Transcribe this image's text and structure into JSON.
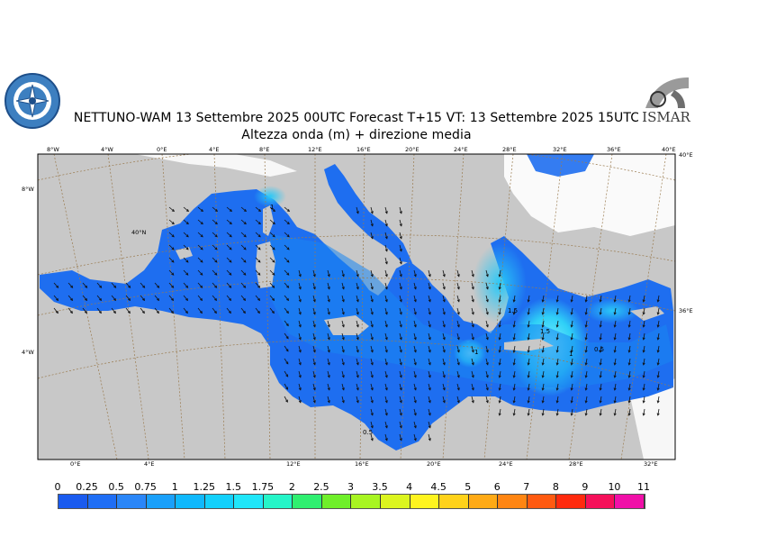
{
  "header": {
    "title_line1": "NETTUNO-WAM  13 Settembre 2025 00UTC Forecast T+15 VT: 13 Settembre 2025 15UTC",
    "title_line2": "Altezza onda (m) + direzione media"
  },
  "logos": {
    "right_text": "ISMAR"
  },
  "map": {
    "top_ticks": [
      "8°W",
      "4°W",
      "0°E",
      "4°E",
      "8°E",
      "12°E",
      "16°E",
      "20°E",
      "24°E",
      "28°E",
      "32°E",
      "36°E",
      "40°E"
    ],
    "bottom_ticks": [
      "0°E",
      "4°E",
      "12°E",
      "16°E",
      "20°E",
      "24°E",
      "28°E",
      "32°E"
    ],
    "left_ticks": [
      "8°W",
      "4°W"
    ],
    "right_ticks": [
      "40°E",
      "36°E"
    ],
    "parallel_label": "40°N",
    "contour_labels": [
      "1",
      "1.5",
      "1.5",
      "1",
      "0.5",
      "1",
      "0.5"
    ],
    "colors": {
      "land": "#c8c8c8",
      "ice": "#ffffff",
      "sea_low": "#1e6ef0",
      "sea_mid": "#00a8f0",
      "sea_high": "#40e8f8",
      "grid": "#9a7b4f"
    }
  },
  "colorbar": {
    "labels": [
      "0",
      "0.25",
      "0.5",
      "0.75",
      "1",
      "1.25",
      "1.5",
      "1.75",
      "2",
      "2.5",
      "3",
      "3.5",
      "4",
      "4.5",
      "5",
      "6",
      "7",
      "8",
      "9",
      "10",
      "11"
    ],
    "colors": [
      "#1a5bef",
      "#1f6ef5",
      "#2a86f8",
      "#1aa0fa",
      "#0fb8fc",
      "#12d0fb",
      "#20e6f9",
      "#25f5c8",
      "#2fef70",
      "#6fef2a",
      "#a8f522",
      "#dcf51f",
      "#fff41f",
      "#ffd21a",
      "#ffaa16",
      "#ff8512",
      "#ff5a10",
      "#ff2a0d",
      "#f5105a",
      "#f010a8"
    ]
  }
}
